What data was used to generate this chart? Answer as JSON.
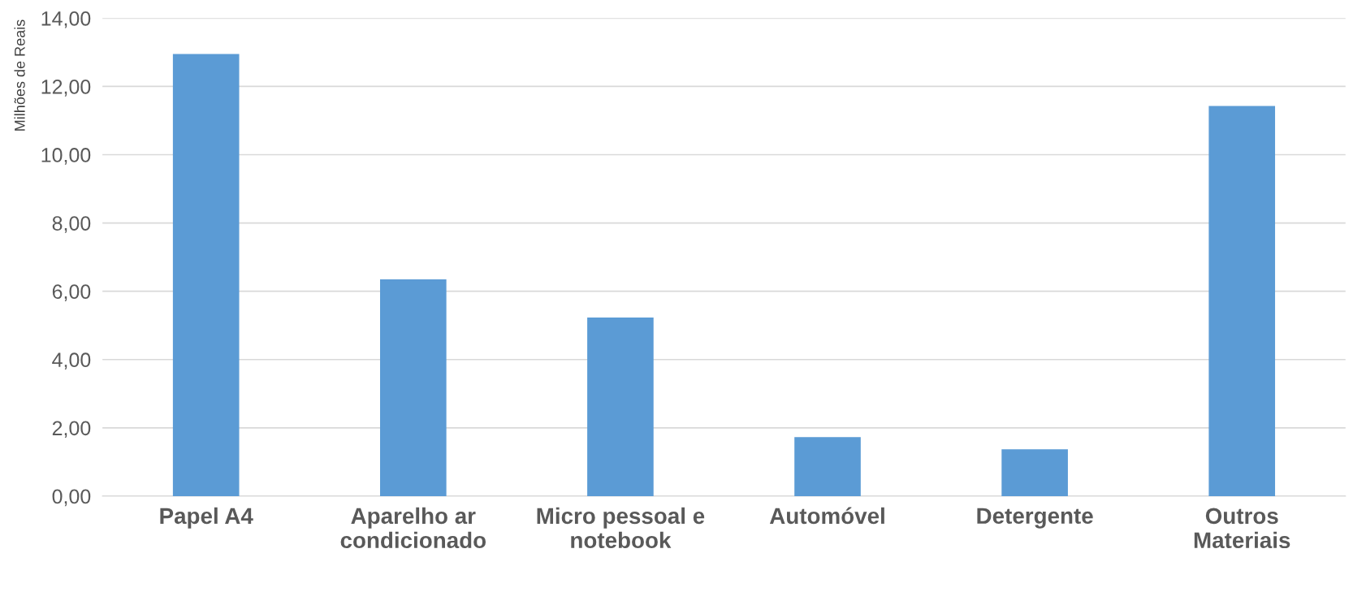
{
  "chart_data": {
    "type": "bar",
    "ylabel": "Milhões de Reais",
    "categories": [
      "Papel A4",
      "Aparelho ar\ncondicionado",
      "Micro pessoal e\nnotebook",
      "Automóvel",
      "Detergente",
      "Outros\nMateriais"
    ],
    "values": [
      12.95,
      6.35,
      5.23,
      1.73,
      1.37,
      11.43
    ],
    "color": "#5b9bd5",
    "ylim": [
      0,
      14
    ],
    "yticks": [
      {
        "value": 0,
        "label": "0,00"
      },
      {
        "value": 2,
        "label": "2,00"
      },
      {
        "value": 4,
        "label": "4,00"
      },
      {
        "value": 6,
        "label": "6,00"
      },
      {
        "value": 8,
        "label": "8,00"
      },
      {
        "value": 10,
        "label": "10,00"
      },
      {
        "value": 12,
        "label": "12,00"
      },
      {
        "value": 14,
        "label": "14,00"
      }
    ],
    "grid": "y"
  }
}
